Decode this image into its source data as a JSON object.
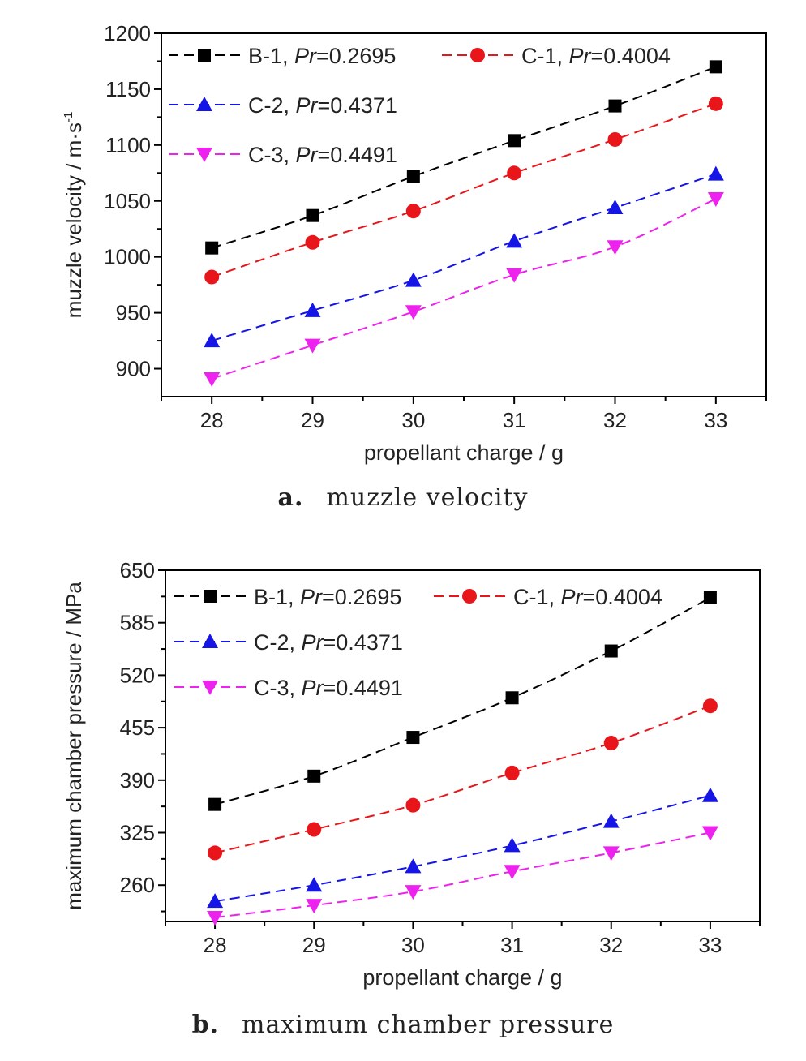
{
  "chart_data": [
    {
      "type": "line",
      "caption_letter": "a.",
      "caption_text": "muzzle velocity",
      "xlabel": "propellant charge / g",
      "ylabel_main": "muzzle velocity / m·s",
      "ylabel_sup": "-1",
      "xlim": [
        27.5,
        33.5
      ],
      "ylim": [
        875,
        1200
      ],
      "x_ticks": [
        28,
        29,
        30,
        31,
        32,
        33
      ],
      "y_ticks": [
        900,
        950,
        1000,
        1050,
        1100,
        1150,
        1200
      ],
      "x": [
        28,
        29,
        30,
        31,
        32,
        33
      ],
      "series": [
        {
          "label_prefix": "B-1, ",
          "label_italic": "Pr",
          "label_suffix": "=0.2695",
          "color": "#000000",
          "marker": "square",
          "values": [
            1008,
            1037,
            1072,
            1104,
            1135,
            1170
          ]
        },
        {
          "label_prefix": "C-1, ",
          "label_italic": "Pr",
          "label_suffix": "=0.4004",
          "color": "#e8161b",
          "marker": "circle",
          "values": [
            982,
            1013,
            1041,
            1075,
            1105,
            1137
          ]
        },
        {
          "label_prefix": "C-2, ",
          "label_italic": "Pr",
          "label_suffix": "=0.4371",
          "color": "#1515e6",
          "marker": "triangle-up",
          "values": [
            925,
            952,
            979,
            1014,
            1044,
            1074
          ]
        },
        {
          "label_prefix": "C-3, ",
          "label_italic": "Pr",
          "label_suffix": "=0.4491",
          "color": "#ee22ee",
          "marker": "triangle-down",
          "values": [
            891,
            921,
            951,
            984,
            1009,
            1052
          ]
        }
      ],
      "legend_position": "top-left",
      "grid": false
    },
    {
      "type": "line",
      "caption_letter": "b.",
      "caption_text": "maximum chamber pressure",
      "xlabel": "propellant charge / g",
      "ylabel_main": "maximum chamber pressure / MPa",
      "ylabel_sup": "",
      "xlim": [
        27.5,
        33.5
      ],
      "ylim": [
        215,
        650
      ],
      "x_ticks": [
        28,
        29,
        30,
        31,
        32,
        33
      ],
      "y_ticks": [
        260,
        325,
        390,
        455,
        520,
        585,
        650
      ],
      "x": [
        28,
        29,
        30,
        31,
        32,
        33
      ],
      "series": [
        {
          "label_prefix": "B-1, ",
          "label_italic": "Pr",
          "label_suffix": "=0.2695",
          "color": "#000000",
          "marker": "square",
          "values": [
            360,
            395,
            443,
            492,
            550,
            616
          ]
        },
        {
          "label_prefix": "C-1, ",
          "label_italic": "Pr",
          "label_suffix": "=0.4004",
          "color": "#e8161b",
          "marker": "circle",
          "values": [
            300,
            329,
            359,
            399,
            436,
            482
          ]
        },
        {
          "label_prefix": "C-2, ",
          "label_italic": "Pr",
          "label_suffix": "=0.4371",
          "color": "#1515e6",
          "marker": "triangle-up",
          "values": [
            240,
            260,
            283,
            309,
            339,
            371
          ]
        },
        {
          "label_prefix": "C-3, ",
          "label_italic": "Pr",
          "label_suffix": "=0.4491",
          "color": "#ee22ee",
          "marker": "triangle-down",
          "values": [
            220,
            235,
            252,
            277,
            300,
            325
          ]
        }
      ],
      "legend_position": "top-left",
      "grid": false
    }
  ]
}
